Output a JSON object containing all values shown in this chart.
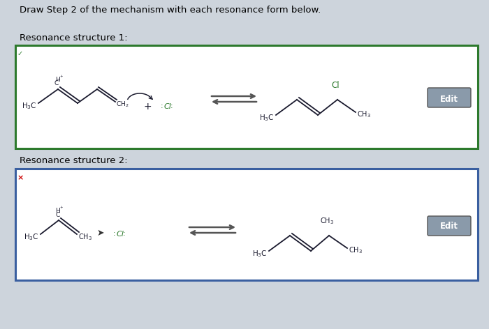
{
  "title": "Draw Step 2 of the mechanism with each resonance form below.",
  "rs1_label": "Resonance structure 1:",
  "rs2_label": "Resonance structure 2:",
  "bg_color": "#cdd4dc",
  "box_bg": "#ffffff",
  "box1_border": "#2d7a2d",
  "box2_border": "#3a5fa0",
  "edit_bg": "#8a9aaa",
  "edit_text": "Edit",
  "checkmark_color": "#2d7a2d",
  "x_color": "#cc0000",
  "mol_color": "#1a1a2e",
  "cl_color": "#2d7a2d",
  "arrow_color": "#555555"
}
